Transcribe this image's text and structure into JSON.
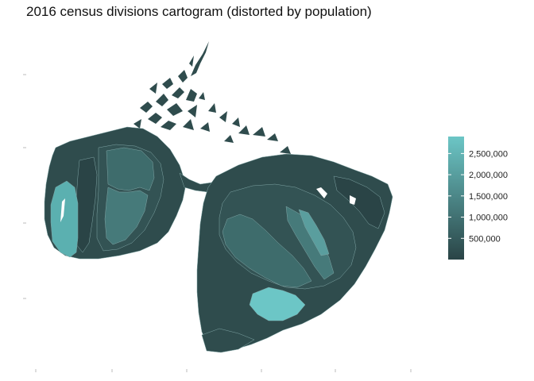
{
  "title": "2016 census divisions cartogram (distorted by population)",
  "legend": {
    "ticks": [
      {
        "value": 2500000,
        "label": "2,500,000"
      },
      {
        "value": 2000000,
        "label": "2,000,000"
      },
      {
        "value": 1500000,
        "label": "1,500,000"
      },
      {
        "value": 1000000,
        "label": "1,000,000"
      },
      {
        "value": 500000,
        "label": "500,000"
      }
    ],
    "range": [
      0,
      2900000
    ],
    "color_low": "#2a4446",
    "color_high": "#6cc6c6"
  },
  "colors": {
    "base_fill": "#2f4c4d",
    "mid_fill": "#3e6c6c",
    "bright_fill": "#5a9e9e",
    "top_fill": "#6cc6c6",
    "border": "#7fa5a5"
  }
}
